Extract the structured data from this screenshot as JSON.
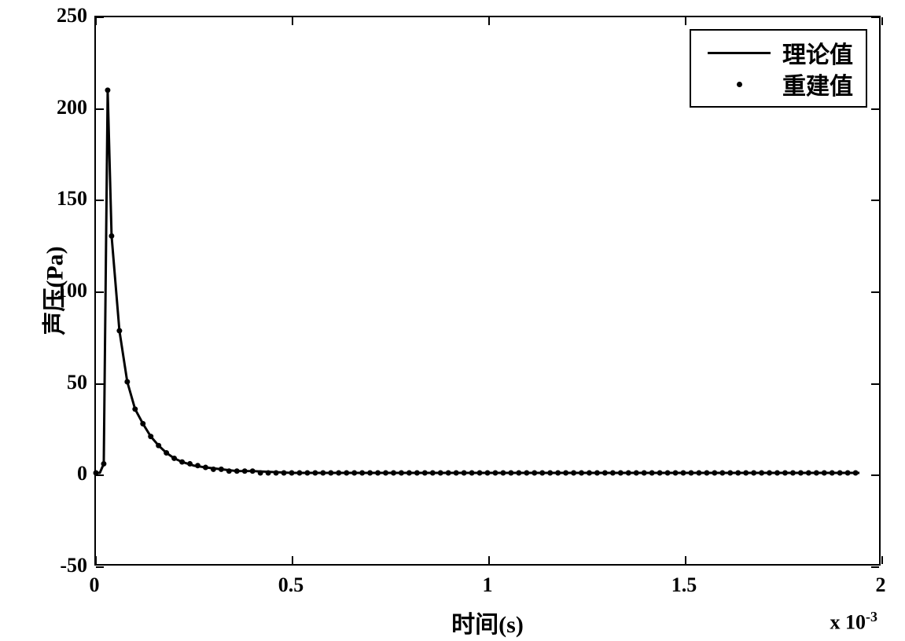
{
  "chart": {
    "type": "line+scatter",
    "xlabel": "时间(s)",
    "ylabel": "声压(Pa)",
    "xlim": [
      0,
      2
    ],
    "ylim": [
      -50,
      250
    ],
    "xtick_values": [
      0,
      0.5,
      1,
      1.5,
      2
    ],
    "xtick_labels": [
      "0",
      "0.5",
      "1",
      "1.5",
      "2"
    ],
    "ytick_values": [
      -50,
      0,
      50,
      100,
      150,
      200,
      250
    ],
    "ytick_labels": [
      "-50",
      "0",
      "50",
      "100",
      "150",
      "200",
      "250"
    ],
    "x_exponent": "× 10⁻³",
    "x_exponent_raw": "x 10",
    "x_exponent_sup": "-3",
    "background_color": "#ffffff",
    "border_color": "#000000",
    "text_color": "#000000",
    "label_fontsize": 30,
    "tick_fontsize": 26,
    "line_color": "#000000",
    "line_width": 3,
    "marker_color": "#000000",
    "marker_size": 3.5,
    "legend": {
      "position": "upper-right",
      "items": [
        {
          "type": "line",
          "label": "理论值"
        },
        {
          "type": "marker",
          "label": "重建值"
        }
      ]
    },
    "series_line": {
      "name": "理论值",
      "x": [
        0,
        0.005,
        0.01,
        0.02,
        0.03,
        0.04,
        0.06,
        0.08,
        0.1,
        0.12,
        0.14,
        0.16,
        0.18,
        0.2,
        0.22,
        0.25,
        0.28,
        0.32,
        0.36,
        0.4,
        0.5,
        0.6,
        0.7,
        0.8,
        0.9,
        1.0,
        1.1,
        1.2,
        1.3,
        1.4,
        1.5,
        1.6,
        1.7,
        1.8,
        1.9,
        1.95
      ],
      "y": [
        0,
        0,
        0,
        5,
        210,
        130,
        78,
        50,
        35,
        27,
        20,
        15,
        11,
        8,
        6,
        4,
        3,
        2,
        1,
        1,
        0,
        0,
        0,
        0,
        0,
        0,
        0,
        0,
        0,
        0,
        0,
        0,
        0,
        0,
        0,
        0
      ]
    },
    "series_markers": {
      "name": "重建值",
      "x": [
        0,
        0.02,
        0.03,
        0.04,
        0.06,
        0.08,
        0.1,
        0.12,
        0.14,
        0.16,
        0.18,
        0.2,
        0.22,
        0.24,
        0.26,
        0.28,
        0.3,
        0.32,
        0.34,
        0.36,
        0.38,
        0.4,
        0.42,
        0.44,
        0.46,
        0.48,
        0.5,
        0.52,
        0.54,
        0.56,
        0.58,
        0.6,
        0.62,
        0.64,
        0.66,
        0.68,
        0.7,
        0.72,
        0.74,
        0.76,
        0.78,
        0.8,
        0.82,
        0.84,
        0.86,
        0.88,
        0.9,
        0.92,
        0.94,
        0.96,
        0.98,
        1.0,
        1.02,
        1.04,
        1.06,
        1.08,
        1.1,
        1.12,
        1.14,
        1.16,
        1.18,
        1.2,
        1.22,
        1.24,
        1.26,
        1.28,
        1.3,
        1.32,
        1.34,
        1.36,
        1.38,
        1.4,
        1.42,
        1.44,
        1.46,
        1.48,
        1.5,
        1.52,
        1.54,
        1.56,
        1.58,
        1.6,
        1.62,
        1.64,
        1.66,
        1.68,
        1.7,
        1.72,
        1.74,
        1.76,
        1.78,
        1.8,
        1.82,
        1.84,
        1.86,
        1.88,
        1.9,
        1.92,
        1.94
      ],
      "y": [
        0,
        5,
        210,
        130,
        78,
        50,
        35,
        27,
        20,
        15,
        11,
        8,
        6,
        5,
        4,
        3,
        2,
        2,
        1,
        1,
        1,
        1,
        0,
        0,
        0,
        0,
        0,
        0,
        0,
        0,
        0,
        0,
        0,
        0,
        0,
        0,
        0,
        0,
        0,
        0,
        0,
        0,
        0,
        0,
        0,
        0,
        0,
        0,
        0,
        0,
        0,
        0,
        0,
        0,
        0,
        0,
        0,
        0,
        0,
        0,
        0,
        0,
        0,
        0,
        0,
        0,
        0,
        0,
        0,
        0,
        0,
        0,
        0,
        0,
        0,
        0,
        0,
        0,
        0,
        0,
        0,
        0,
        0,
        0,
        0,
        0,
        0,
        0,
        0,
        0,
        0,
        0,
        0,
        0,
        0,
        0,
        0,
        0,
        0
      ]
    }
  }
}
